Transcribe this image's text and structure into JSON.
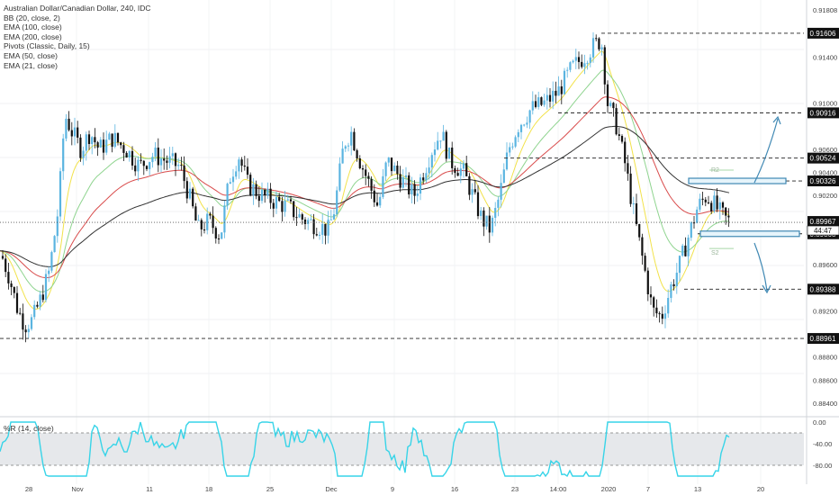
{
  "header": {
    "title": "Australian Dollar/Canadian Dollar, 240, IDC",
    "indicators": [
      "BB (20, close, 2)",
      "EMA (100, close)",
      "EMA (200, close)",
      "Pivots (Classic, Daily, 15)",
      "EMA (50, close)",
      "EMA (21, close)"
    ]
  },
  "oscillator": {
    "label": "%R (14, close)",
    "ticks": [
      "0.00",
      "-40.00",
      "-80.00"
    ]
  },
  "colors": {
    "up_candle": "#5ab4e0",
    "down_candle": "#111111",
    "bb_band": "#9ab4d0",
    "bb_fill": "#dfe3e8",
    "ema21": "#f2e24a",
    "ema50": "#8fd48f",
    "ema100": "#d94c4c",
    "ema200": "#333333",
    "williams": "#37d4e8",
    "zone": "#e6f4fb",
    "arrow": "#3f88b3"
  },
  "chart_data": {
    "type": "candlestick",
    "symbol": "AUDCAD",
    "timeframe": "240",
    "price_axis_ticks": [
      "0.91808",
      "0.91400",
      "0.91000",
      "0.90600",
      "0.90200",
      "0.89800",
      "0.89400",
      "0.89000",
      "0.88600",
      "0.88400"
    ],
    "price_axis_extra_ticks": [
      "0.91400",
      "0.91000",
      "0.90600",
      "0.90400",
      "0.90200",
      "0.89600",
      "0.89200",
      "0.88800",
      "0.88600",
      "0.88400"
    ],
    "date_ticks": [
      "28",
      "Nov",
      "11",
      "18",
      "25",
      "Dec",
      "9",
      "16",
      "23",
      "14:00",
      "2020",
      "7",
      "13",
      "20"
    ],
    "levels": [
      {
        "value": 0.91606,
        "label": "0.91606"
      },
      {
        "value": 0.90916,
        "label": "0.90916"
      },
      {
        "value": 0.90524,
        "label": "0.90524"
      },
      {
        "value": 0.90326,
        "label": "0.90326"
      },
      {
        "value": 0.89868,
        "label": "0.89868"
      },
      {
        "value": 0.89388,
        "label": "0.89388"
      },
      {
        "value": 0.88961,
        "label": "0.88961"
      }
    ],
    "current_price": {
      "value": 0.89967,
      "label": "0.89967",
      "countdown": "44:47"
    },
    "pivot_labels": [
      "R2",
      "S2"
    ],
    "williams_r_range": [
      -100,
      0
    ]
  }
}
